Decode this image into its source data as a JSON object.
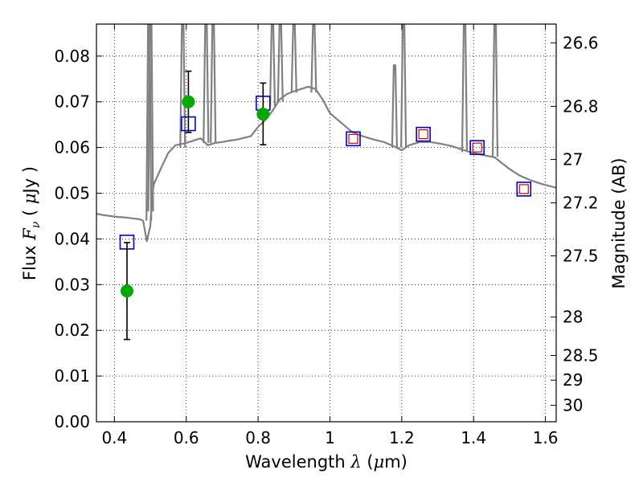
{
  "chart_data": {
    "type": "scatter",
    "xlabel": "Wavelength  λ (μm)",
    "ylabel": "Flux  Fν  ( μJy )",
    "y2label": "Magnitude (AB)",
    "xlim": [
      0.35,
      1.63
    ],
    "ylim": [
      0.0,
      0.087
    ],
    "grid": true,
    "x_ticks": [
      0.4,
      0.6,
      0.8,
      1.0,
      1.2,
      1.4,
      1.6
    ],
    "x_tick_labels": [
      "0.4",
      "0.6",
      "0.8",
      "1",
      "1.2",
      "1.4",
      "1.6"
    ],
    "y_ticks": [
      0.0,
      0.01,
      0.02,
      0.03,
      0.04,
      0.05,
      0.06,
      0.07,
      0.08
    ],
    "y_tick_labels": [
      "0.00",
      "0.01",
      "0.02",
      "0.03",
      "0.04",
      "0.05",
      "0.06",
      "0.07",
      "0.08"
    ],
    "y2_ticks": [
      {
        "label": "26.6",
        "flux": 0.0829
      },
      {
        "label": "26.8",
        "flux": 0.069
      },
      {
        "label": "27",
        "flux": 0.0574
      },
      {
        "label": "27.2",
        "flux": 0.0479
      },
      {
        "label": "27.5",
        "flux": 0.0363
      },
      {
        "label": "28",
        "flux": 0.0229
      },
      {
        "label": "28.5",
        "flux": 0.0145
      },
      {
        "label": "29",
        "flux": 0.0091
      },
      {
        "label": "30",
        "flux": 0.0036
      }
    ],
    "series": [
      {
        "kind": "line",
        "color": "#808080",
        "x": [
          0.35,
          0.37,
          0.39,
          0.41,
          0.43,
          0.45,
          0.47,
          0.48,
          0.49,
          0.5,
          0.505,
          0.51,
          0.53,
          0.55,
          0.57,
          0.6,
          0.62,
          0.64,
          0.66,
          0.68,
          0.7,
          0.72,
          0.74,
          0.76,
          0.78,
          0.8,
          0.82,
          0.84,
          0.86,
          0.88,
          0.9,
          0.92,
          0.94,
          0.96,
          0.98,
          1.0,
          1.03,
          1.06,
          1.09,
          1.12,
          1.15,
          1.18,
          1.2,
          1.22,
          1.25,
          1.28,
          1.31,
          1.34,
          1.37,
          1.4,
          1.43,
          1.46,
          1.48,
          1.5,
          1.53,
          1.56,
          1.59,
          1.63
        ],
        "y": [
          0.0455,
          0.0452,
          0.045,
          0.0448,
          0.0447,
          0.0445,
          0.0443,
          0.044,
          0.0395,
          0.0428,
          0.0496,
          0.052,
          0.0555,
          0.0588,
          0.0605,
          0.061,
          0.0615,
          0.062,
          0.0605,
          0.061,
          0.0612,
          0.0615,
          0.0617,
          0.0621,
          0.0625,
          0.0645,
          0.066,
          0.068,
          0.0705,
          0.0717,
          0.0723,
          0.0728,
          0.0733,
          0.0728,
          0.0705,
          0.0675,
          0.0655,
          0.0635,
          0.0625,
          0.0618,
          0.0612,
          0.0602,
          0.0594,
          0.0605,
          0.0612,
          0.0612,
          0.0608,
          0.0603,
          0.0595,
          0.0588,
          0.0583,
          0.0578,
          0.0565,
          0.0553,
          0.0538,
          0.0528,
          0.052,
          0.0512
        ]
      },
      {
        "kind": "emission-lines",
        "color": "#808080",
        "lines": [
          {
            "x": 0.496,
            "base": 0.044,
            "peak": 0.087
          },
          {
            "x": 0.501,
            "base": 0.046,
            "peak": 0.087
          },
          {
            "x": 0.59,
            "base": 0.06,
            "peak": 0.087
          },
          {
            "x": 0.655,
            "base": 0.061,
            "peak": 0.087
          },
          {
            "x": 0.675,
            "base": 0.061,
            "peak": 0.087
          },
          {
            "x": 0.84,
            "base": 0.069,
            "peak": 0.087
          },
          {
            "x": 0.862,
            "base": 0.07,
            "peak": 0.087
          },
          {
            "x": 0.9,
            "base": 0.072,
            "peak": 0.087
          },
          {
            "x": 0.955,
            "base": 0.072,
            "peak": 0.087
          },
          {
            "x": 1.18,
            "base": 0.06,
            "peak": 0.078
          },
          {
            "x": 1.205,
            "base": 0.06,
            "peak": 0.087
          },
          {
            "x": 1.375,
            "base": 0.059,
            "peak": 0.087
          },
          {
            "x": 1.46,
            "base": 0.058,
            "peak": 0.087
          }
        ]
      },
      {
        "kind": "open-square",
        "color": "#0000cc",
        "x": [
          0.435,
          0.606,
          0.814,
          1.065,
          1.26,
          1.41,
          1.54
        ],
        "y": [
          0.0393,
          0.0652,
          0.0697,
          0.0619,
          0.0629,
          0.06,
          0.0509
        ]
      },
      {
        "kind": "small-open-square",
        "color": "#dd0000",
        "x": [
          1.065,
          1.26,
          1.41,
          1.54
        ],
        "y": [
          0.0619,
          0.0629,
          0.06,
          0.0509
        ]
      },
      {
        "kind": "filled-circle",
        "color": "#00aa00",
        "x": [
          0.435,
          0.606,
          0.814
        ],
        "y": [
          0.0286,
          0.07,
          0.0673
        ],
        "yerr_low": [
          0.018,
          0.0633,
          0.0606
        ],
        "yerr_high": [
          0.0392,
          0.0767,
          0.0741
        ]
      }
    ]
  }
}
